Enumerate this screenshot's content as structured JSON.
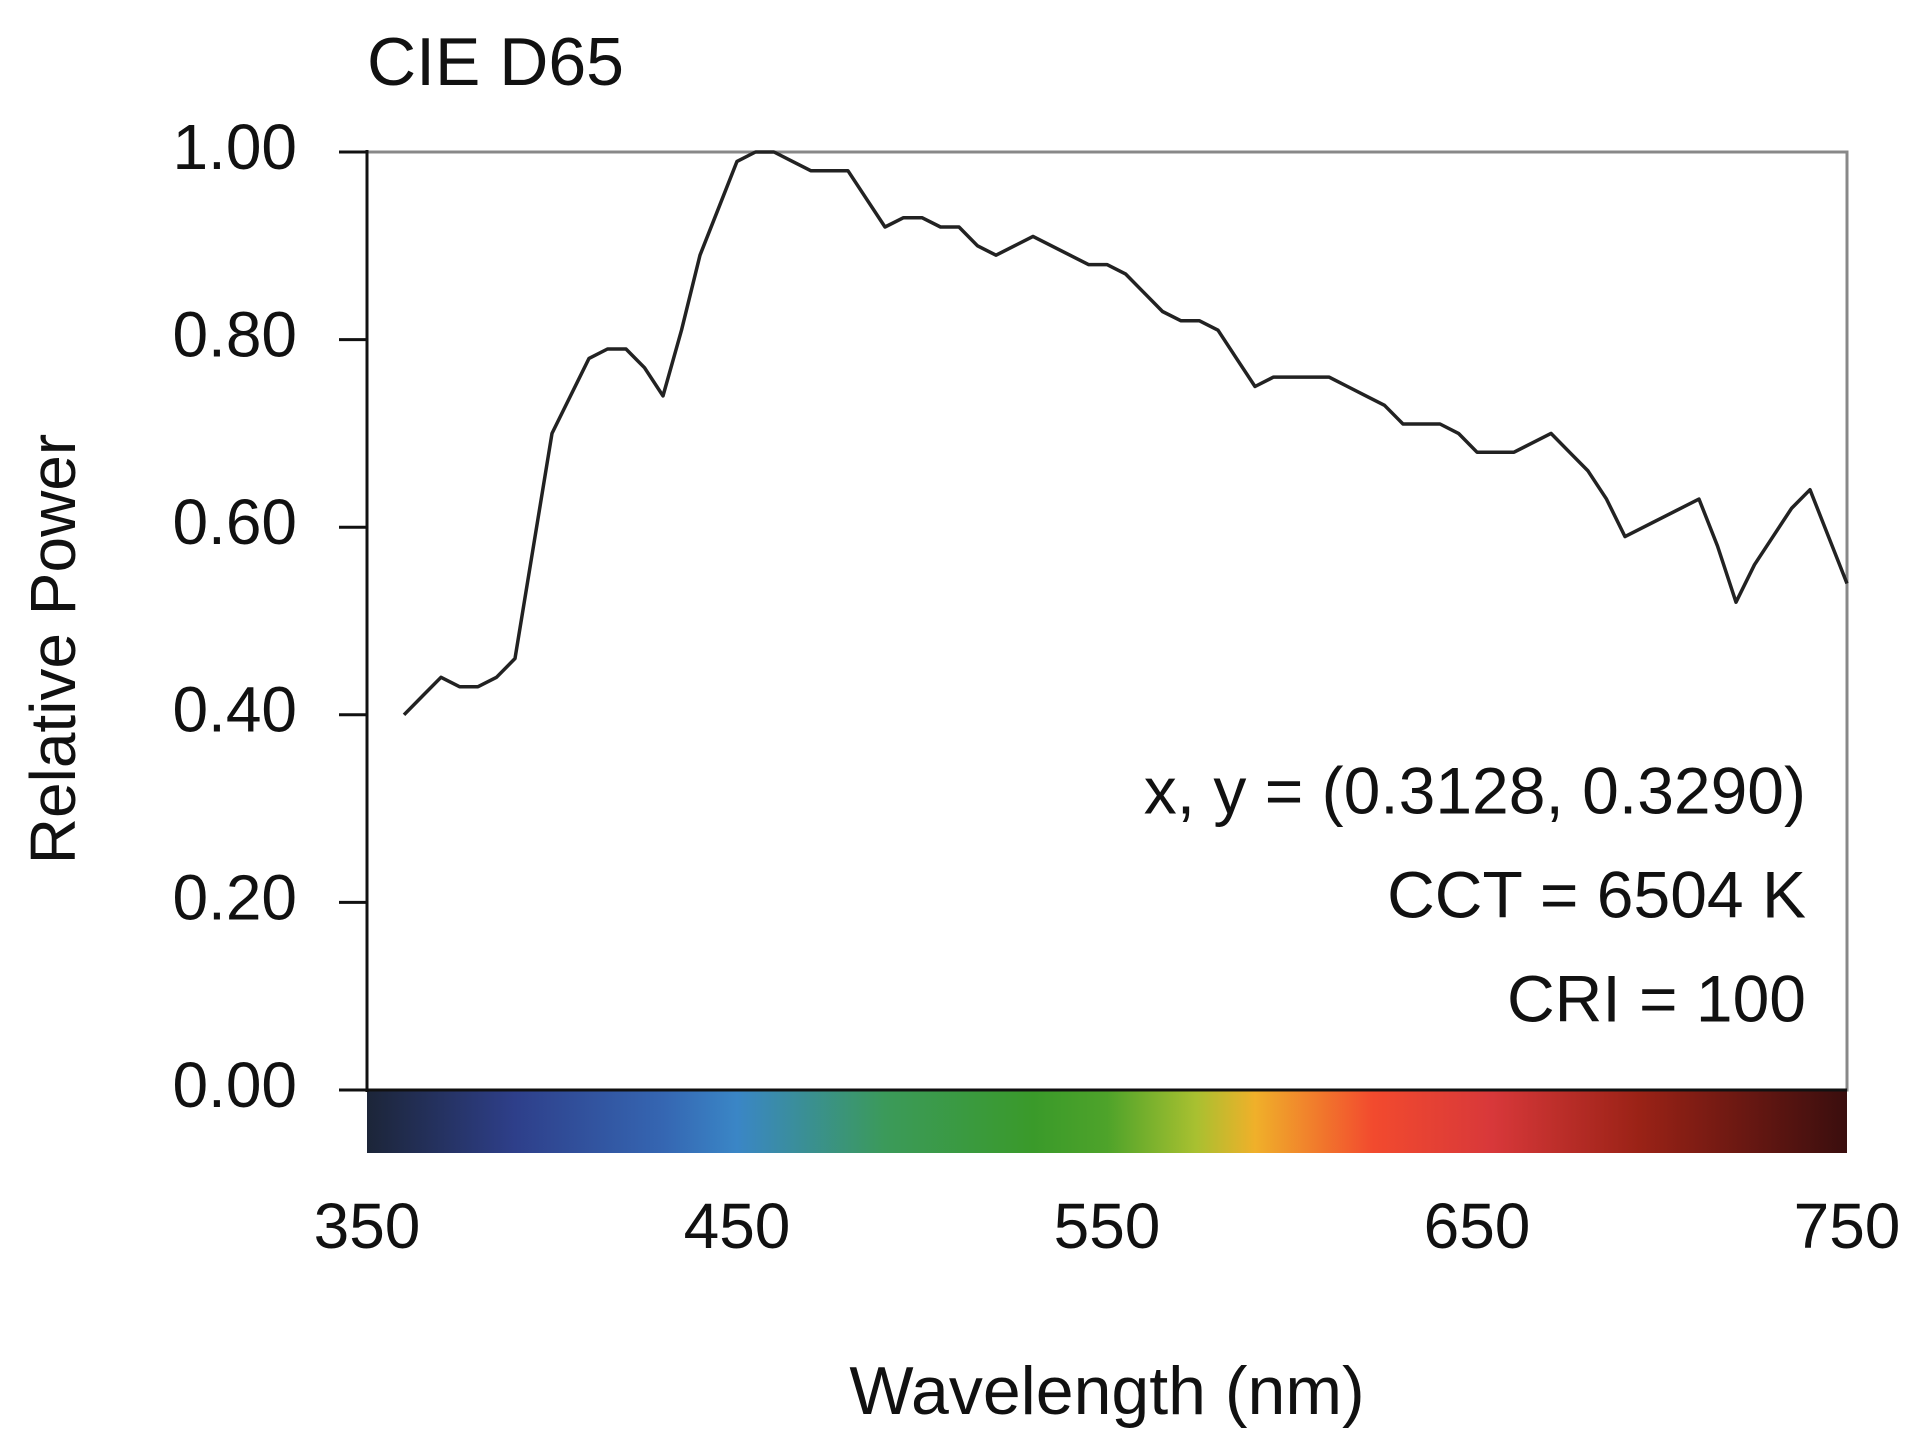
{
  "chart_data": {
    "type": "line",
    "title": "CIE D65",
    "xlabel": "Wavelength (nm)",
    "ylabel": "Relative Power",
    "annotations": [
      "x, y = (0.3128, 0.3290)",
      "CCT = 6504 K",
      "CRI = 100"
    ],
    "x": [
      360,
      365,
      370,
      375,
      380,
      385,
      390,
      395,
      400,
      405,
      410,
      415,
      420,
      425,
      430,
      435,
      440,
      445,
      450,
      455,
      460,
      465,
      470,
      475,
      480,
      485,
      490,
      495,
      500,
      505,
      510,
      515,
      520,
      525,
      530,
      535,
      540,
      545,
      550,
      555,
      560,
      565,
      570,
      575,
      580,
      585,
      590,
      595,
      600,
      605,
      610,
      615,
      620,
      625,
      630,
      635,
      640,
      645,
      650,
      655,
      660,
      665,
      670,
      675,
      680,
      685,
      690,
      695,
      700,
      705,
      710,
      715,
      720,
      725,
      730,
      735,
      740,
      745,
      750
    ],
    "series": [
      {
        "name": "CIE D65",
        "color": "#222222",
        "values": [
          0.4,
          0.42,
          0.44,
          0.43,
          0.43,
          0.44,
          0.46,
          0.58,
          0.7,
          0.74,
          0.78,
          0.79,
          0.79,
          0.77,
          0.74,
          0.81,
          0.89,
          0.94,
          0.99,
          1.0,
          1.0,
          0.99,
          0.98,
          0.98,
          0.98,
          0.95,
          0.92,
          0.93,
          0.93,
          0.92,
          0.92,
          0.9,
          0.89,
          0.9,
          0.91,
          0.9,
          0.89,
          0.88,
          0.88,
          0.87,
          0.85,
          0.83,
          0.82,
          0.82,
          0.81,
          0.78,
          0.75,
          0.76,
          0.76,
          0.76,
          0.76,
          0.75,
          0.74,
          0.73,
          0.71,
          0.71,
          0.71,
          0.7,
          0.68,
          0.68,
          0.68,
          0.69,
          0.7,
          0.68,
          0.66,
          0.63,
          0.59,
          0.6,
          0.61,
          0.62,
          0.63,
          0.58,
          0.52,
          0.56,
          0.59,
          0.62,
          0.64,
          0.59,
          0.54
        ]
      }
    ],
    "xlim": [
      350,
      750
    ],
    "xticks": [
      350,
      450,
      550,
      650,
      750
    ],
    "ylim": [
      0,
      1
    ],
    "yticks": [
      {
        "value": 0,
        "label": "0.00"
      },
      {
        "value": 0.2,
        "label": "0.20"
      },
      {
        "value": 0.4,
        "label": "0.40"
      },
      {
        "value": 0.6,
        "label": "0.60"
      },
      {
        "value": 0.8,
        "label": "0.80"
      },
      {
        "value": 1,
        "label": "1.00"
      }
    ],
    "grid": false
  }
}
